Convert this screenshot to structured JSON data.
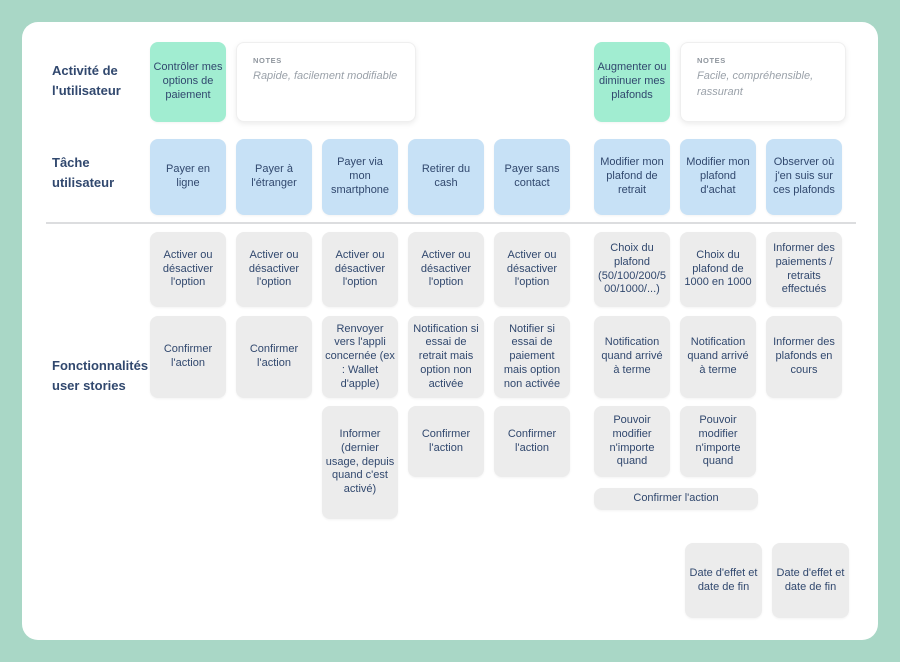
{
  "colors": {
    "background": "#a9d7c6",
    "panel": "#ffffff",
    "activity_card": "#a1edd1",
    "task_card": "#c7e1f6",
    "story_card": "#ececec",
    "text": "#31486e",
    "notes_label": "#8f969e",
    "notes_text": "#9aa1a9"
  },
  "row_labels": {
    "activity": "Activité de l'utilisateur",
    "task": "Tâche utilisateur",
    "stories": "Fonctionnalités / user stories"
  },
  "activities": [
    {
      "title": "Contrôler mes options de paiement",
      "notes_label": "NOTES",
      "notes_text": "Rapide, facilement modifiable"
    },
    {
      "title": "Augmenter ou diminuer mes plafonds",
      "notes_label": "NOTES",
      "notes_text": "Facile, compréhensible, rassurant"
    }
  ],
  "tasks": [
    "Payer en ligne",
    "Payer à l'étranger",
    "Payer via mon smartphone",
    "Retirer du cash",
    "Payer sans contact",
    "Modifier mon plafond de retrait",
    "Modifier mon plafond d'achat",
    "Observer où j'en suis sur ces plafonds"
  ],
  "stories": {
    "row1": [
      "Activer ou désactiver l'option",
      "Activer ou désactiver l'option",
      "Activer ou désactiver l'option",
      "Activer ou désactiver l'option",
      "Activer ou désactiver l'option",
      "Choix du plafond (50/100/200/500/1000/...)",
      "Choix du plafond de 1000 en 1000",
      "Informer des paiements / retraits effectués"
    ],
    "row2": [
      "Confirmer l'action",
      "Confirmer l'action",
      "Renvoyer vers l'appli concernée (ex : Wallet d'apple)",
      "Notification si essai de retrait mais option non activée",
      "Notifier si essai de paiement mais option non activée",
      "Notification quand arrivé à terme",
      "Notification quand arrivé à terme",
      "Informer des plafonds en cours"
    ],
    "row3": [
      "Informer (dernier usage, depuis quand c'est activé)",
      "Confirmer l'action",
      "Confirmer l'action",
      "Pouvoir modifier n'importe quand",
      "Pouvoir modifier n'importe quand"
    ],
    "confirm_wide": "Confirmer l'action",
    "dates": [
      "Date d'effet et date de fin",
      "Date d'effet et date de fin"
    ]
  }
}
